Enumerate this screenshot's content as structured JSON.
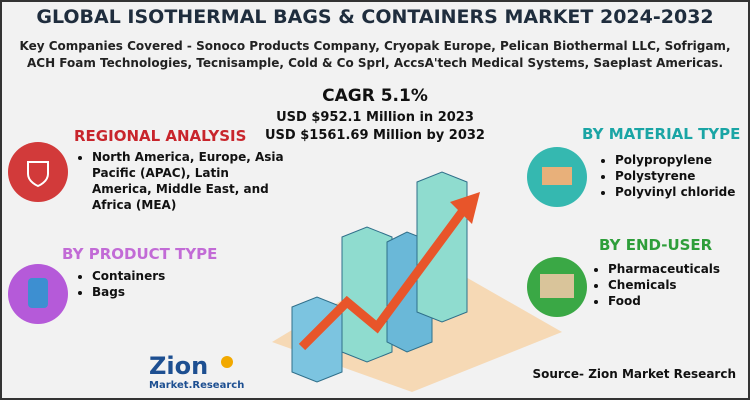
{
  "header": {
    "title": "GLOBAL ISOTHERMAL BAGS & CONTAINERS MARKET 2024-2032",
    "companies": "Key Companies Covered - Sonoco Products Company, Cryopak Europe, Pelican Biothermal LLC, Sofrigam, ACH Foam Technologies, Tecnisample, Cold & Co Sprl, AccsA'tech Medical Systems, Saeplast Americas."
  },
  "cagr": "CAGR 5.1%",
  "market": [
    "USD $952.1 Million in 2023",
    "USD $1561.69 Million  by 2032"
  ],
  "sections": [
    {
      "title": "REGIONAL ANALYSIS",
      "items": [
        "North America, Europe, Asia Pacific (APAC), Latin America, Middle East, and Africa (MEA)"
      ]
    },
    {
      "title": "BY PRODUCT TYPE",
      "items": [
        "Containers",
        "Bags"
      ]
    },
    {
      "title": "BY MATERIAL TYPE",
      "items": [
        "Polypropylene",
        "Polystyrene",
        "Polyvinyl chloride"
      ]
    },
    {
      "title": "BY END-USER",
      "items": [
        "Pharmaceuticals",
        "Chemicals",
        "Food"
      ]
    }
  ],
  "logo": {
    "name": "Zion",
    "tagline": "Market.Research"
  },
  "source": "Source- Zion Market Research"
}
